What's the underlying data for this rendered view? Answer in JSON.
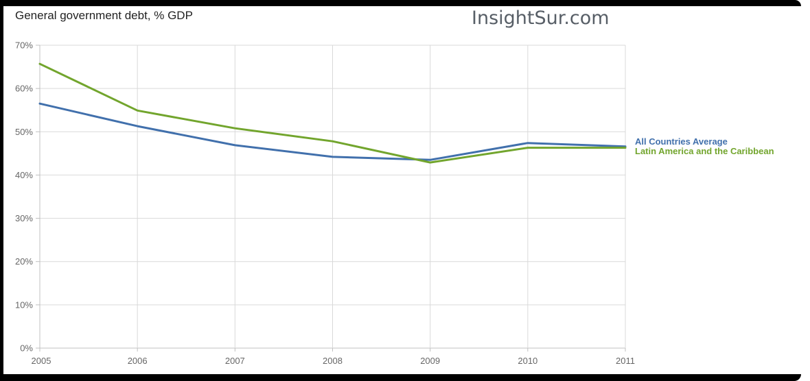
{
  "header": {
    "title": "General government debt, % GDP",
    "brand": "InsightSur.com"
  },
  "axes": {
    "y_labels": [
      "70%",
      "60%",
      "50%",
      "40%",
      "30%",
      "20%",
      "10%",
      "0%"
    ],
    "x_labels": [
      "2005",
      "2006",
      "2007",
      "2008",
      "2009",
      "2010",
      "2011"
    ]
  },
  "legend": {
    "items": [
      "All Countries Average",
      "Latin America and the Caribbean"
    ]
  },
  "chart_data": {
    "type": "line",
    "title": "General government debt, % GDP",
    "x": [
      2005,
      2006,
      2007,
      2008,
      2009,
      2010,
      2011
    ],
    "series": [
      {
        "name": "All Countries Average",
        "color": "#4170ac",
        "values": [
          56.5,
          51.3,
          46.9,
          44.2,
          43.5,
          47.4,
          46.6
        ]
      },
      {
        "name": "Latin America and the Caribbean",
        "color": "#72a52d",
        "values": [
          65.7,
          54.9,
          50.8,
          47.8,
          42.9,
          46.3,
          46.3
        ]
      }
    ],
    "xlabel": "",
    "ylabel": "",
    "ylim": [
      0,
      70
    ],
    "y_tick_step": 10,
    "y_tick_suffix": "%",
    "grid": true,
    "legend_position": "right-of-plot",
    "colors": {
      "gridline": "#d9d9d9",
      "axis": "#c0c0c0",
      "tick_label": "#666666",
      "title": "#222222",
      "brand": "#575e66",
      "frame": "#000000",
      "background": "#ffffff"
    }
  }
}
